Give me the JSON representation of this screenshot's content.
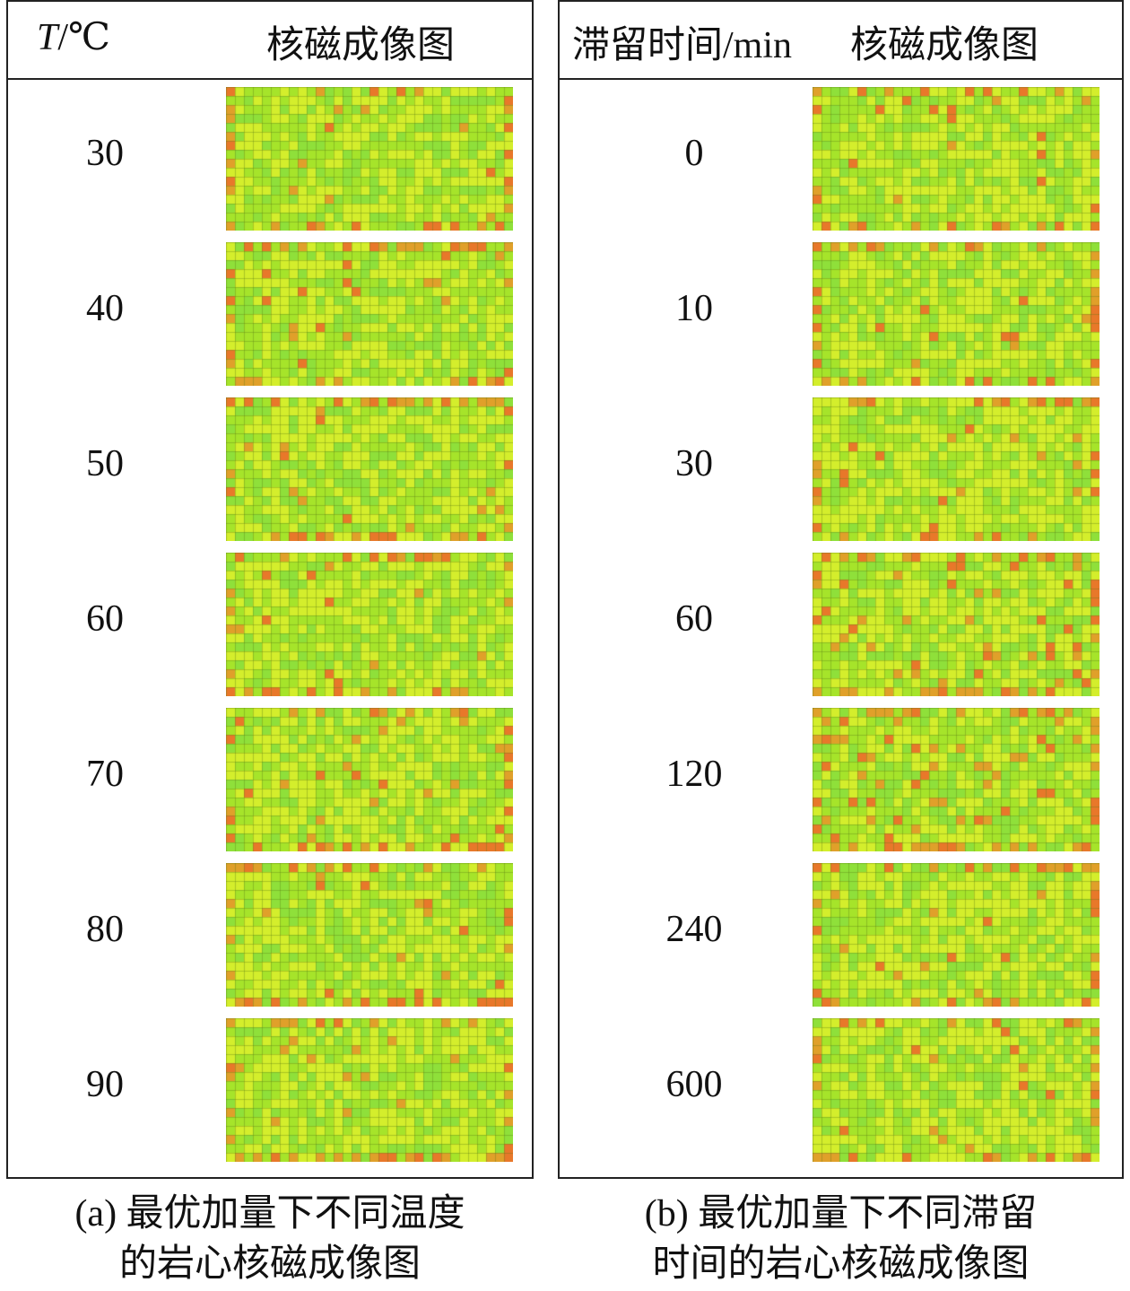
{
  "panel_a": {
    "header_var": "T",
    "header_unit": "/℃",
    "header_image": "核磁成像图",
    "rows": [
      "30",
      "40",
      "50",
      "60",
      "70",
      "80",
      "90"
    ],
    "caption_line1": "(a) 最优加量下不同温度",
    "caption_line2": "的岩心核磁成像图"
  },
  "panel_b": {
    "header_var": "滞留时间/min",
    "header_image": "核磁成像图",
    "rows": [
      "0",
      "10",
      "30",
      "60",
      "120",
      "240",
      "600"
    ],
    "caption_line1": "(b) 最优加量下不同滞留",
    "caption_line2": "时间的岩心核磁成像图"
  },
  "colors": {
    "base_green": "#9be22a",
    "yellow": "#d8f02a",
    "orange": "#e8782a",
    "grid": "#6a8a1a"
  }
}
